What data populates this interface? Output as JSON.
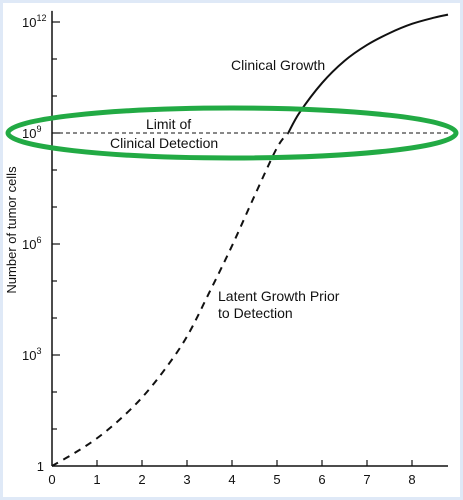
{
  "chart_data": {
    "type": "line",
    "ylabel": "Number of tumor cells",
    "xlim": [
      0,
      8.8
    ],
    "ylim_log10": [
      0,
      12.3
    ],
    "x_ticks": [
      0,
      1,
      2,
      3,
      4,
      5,
      6,
      7,
      8
    ],
    "y_ticks": [
      {
        "log10": 0,
        "base": "1",
        "exp": ""
      },
      {
        "log10": 3,
        "base": "10",
        "exp": "3"
      },
      {
        "log10": 6,
        "base": "10",
        "exp": "6"
      },
      {
        "log10": 9,
        "base": "10",
        "exp": "9"
      },
      {
        "log10": 12,
        "base": "10",
        "exp": "12"
      }
    ],
    "series": [
      {
        "name": "Latent Growth Prior to Detection",
        "style": "dashed",
        "points": [
          [
            0,
            0
          ],
          [
            0.5,
            0.35
          ],
          [
            1,
            0.75
          ],
          [
            1.5,
            1.25
          ],
          [
            2,
            1.85
          ],
          [
            2.5,
            2.6
          ],
          [
            3,
            3.5
          ],
          [
            3.5,
            4.7
          ],
          [
            4,
            5.95
          ],
          [
            4.5,
            7.3
          ],
          [
            5,
            8.6
          ],
          [
            5.25,
            9
          ]
        ]
      },
      {
        "name": "Clinical Growth",
        "style": "solid",
        "points": [
          [
            5.25,
            9
          ],
          [
            5.5,
            9.55
          ],
          [
            6,
            10.35
          ],
          [
            6.5,
            10.95
          ],
          [
            7,
            11.38
          ],
          [
            7.5,
            11.7
          ],
          [
            8,
            11.95
          ],
          [
            8.5,
            12.12
          ],
          [
            8.8,
            12.2
          ]
        ]
      }
    ],
    "threshold": {
      "log10": 9,
      "style": "dashed"
    },
    "annotations": {
      "clinical_growth": "Clinical Growth",
      "limit_line1": "Limit of",
      "limit_line2": "Clinical Detection",
      "latent_line1": "Latent Growth Prior",
      "latent_line2": "to Detection"
    },
    "highlight_color": "#22aa44",
    "grid": false
  }
}
